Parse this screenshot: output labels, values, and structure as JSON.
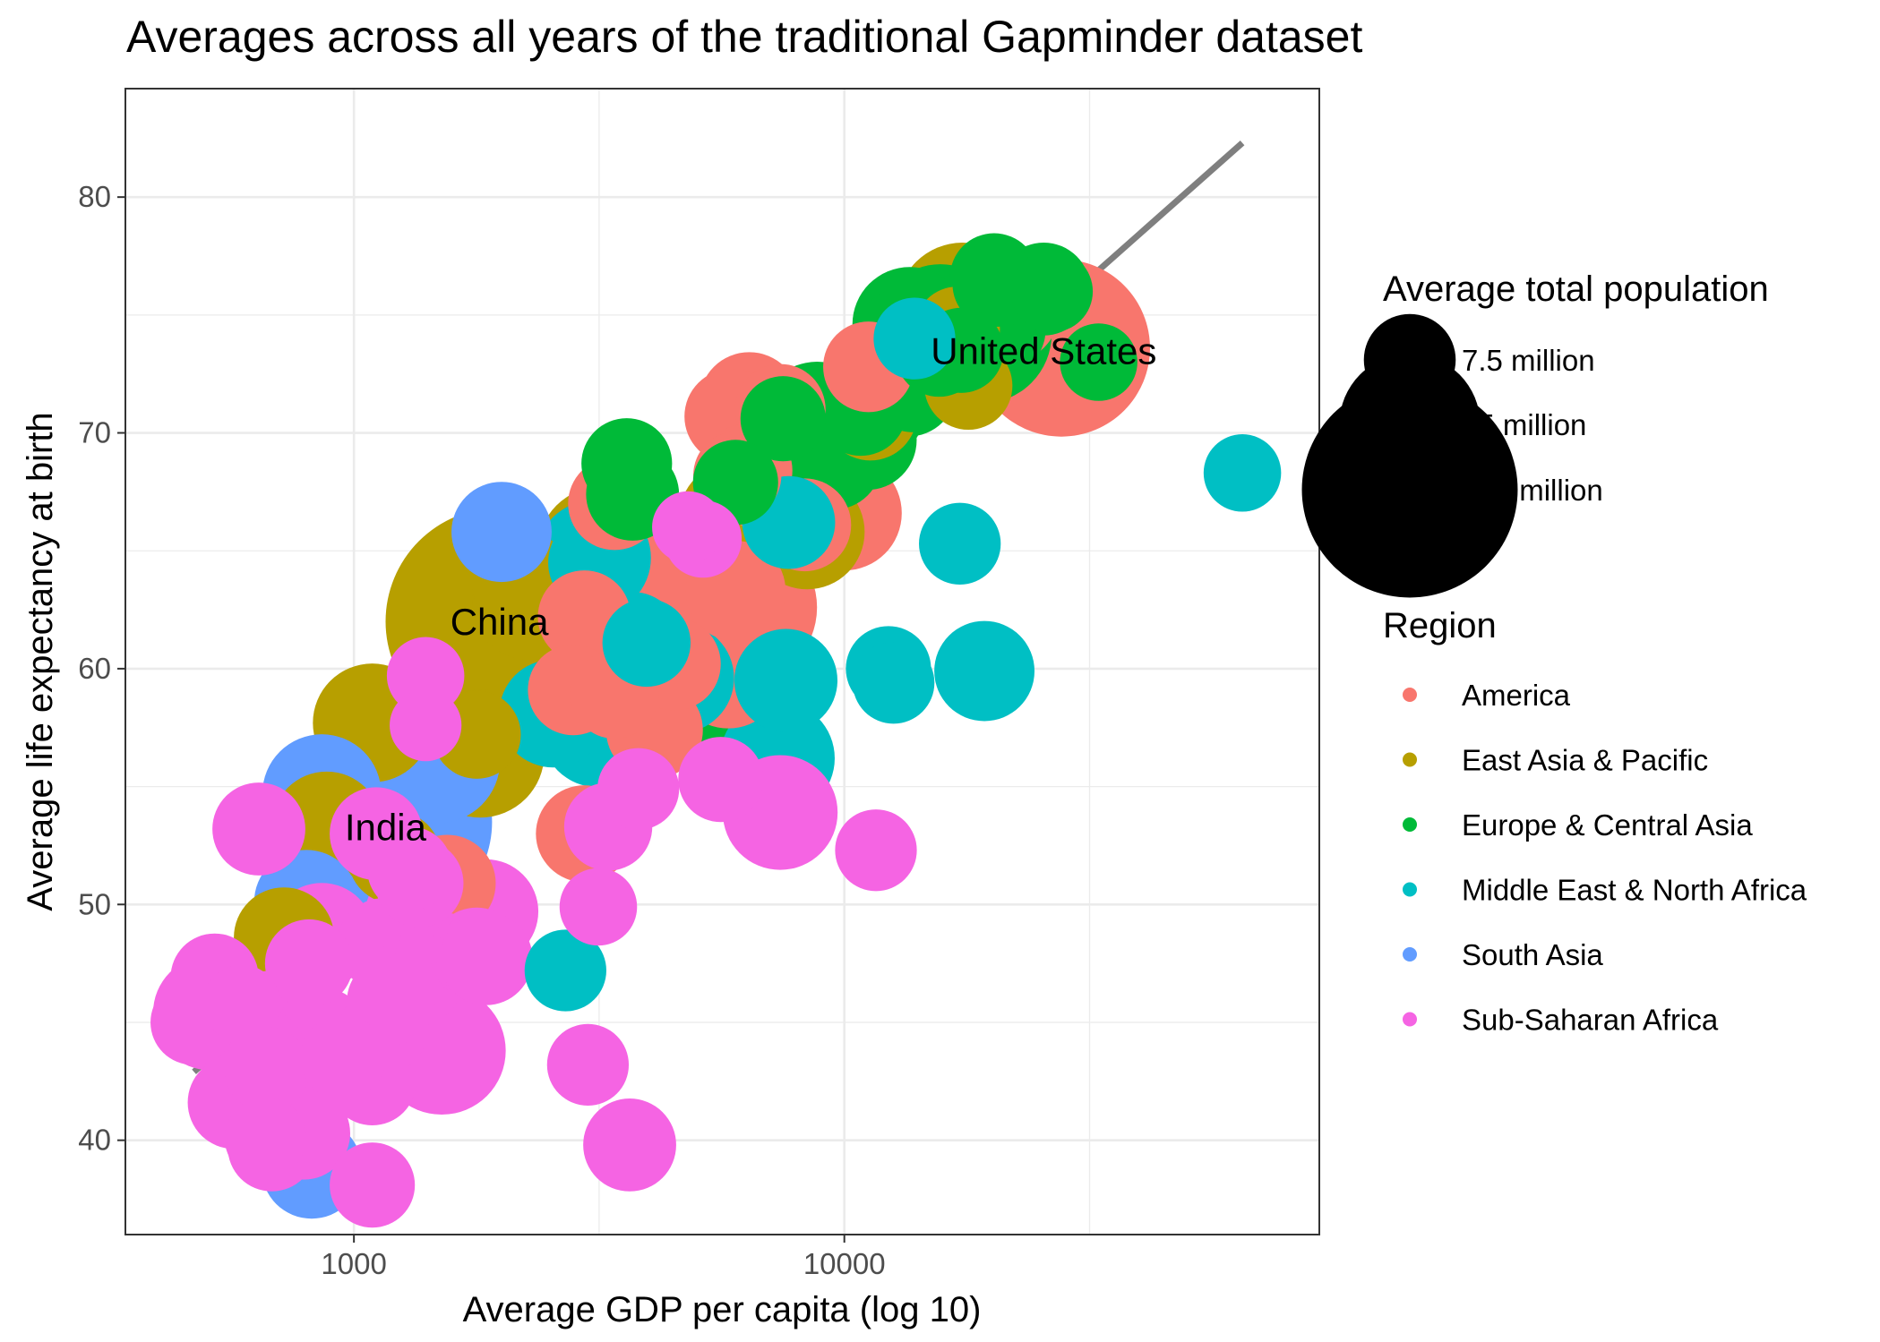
{
  "chart_data": {
    "type": "scatter",
    "title": "Averages across all years of the traditional Gapminder dataset",
    "xlabel": "Average GDP per capita (log 10)",
    "ylabel": "Average life expectancy at birth",
    "x_scale": "log10",
    "xlim": [
      342,
      93000
    ],
    "ylim": [
      36.0,
      84.6
    ],
    "x_ticks": [
      1000,
      10000
    ],
    "x_tick_labels": [
      "1000",
      "10000"
    ],
    "y_ticks": [
      40,
      50,
      60,
      70,
      80
    ],
    "y_tick_labels": [
      "40",
      "50",
      "60",
      "70",
      "80"
    ],
    "grid": true,
    "trend_line": {
      "x": [
        472,
        64800
      ],
      "y": [
        42.9,
        82.3
      ],
      "color": "#7f7f7f"
    },
    "annotations": [
      {
        "text": "China",
        "x": 1980,
        "y": 62.0
      },
      {
        "text": "India",
        "x": 1160,
        "y": 53.3
      },
      {
        "text": "United States",
        "x": 25500,
        "y": 73.5
      }
    ],
    "legends": {
      "size": {
        "title": "Average total population",
        "entries": [
          {
            "label": "7.5 million",
            "population": 7500000
          },
          {
            "label": "75 million",
            "population": 75000000
          },
          {
            "label": "750 million",
            "population": 750000000
          }
        ]
      },
      "color": {
        "title": "Region",
        "entries": [
          {
            "label": "America",
            "color": "#F8766D"
          },
          {
            "label": "East Asia & Pacific",
            "color": "#B79F00"
          },
          {
            "label": "Europe & Central Asia",
            "color": "#00BA38"
          },
          {
            "label": "Middle East & North Africa",
            "color": "#00BFC4"
          },
          {
            "label": "South Asia",
            "color": "#619CFF"
          },
          {
            "label": "Sub-Saharan Africa",
            "color": "#F564E3"
          }
        ]
      }
    },
    "series": [
      {
        "name": "America",
        "color": "#F8766D",
        "points": [
          [
            27700,
            73.6,
            260000000
          ],
          [
            21200,
            75.3,
            22000000
          ],
          [
            11200,
            72.8,
            7000000
          ],
          [
            6400,
            71.3,
            12000000
          ],
          [
            7400,
            71.0,
            7000000
          ],
          [
            5900,
            70.7,
            9000000
          ],
          [
            9200,
            69.4,
            30000000
          ],
          [
            6300,
            68.4,
            8000000
          ],
          [
            6050,
            68.2,
            6000000
          ],
          [
            6950,
            67.9,
            12000000
          ],
          [
            10000,
            66.6,
            25000000
          ],
          [
            3400,
            67.0,
            8000000
          ],
          [
            8300,
            66.1,
            8000000
          ],
          [
            6100,
            62.6,
            130000000
          ],
          [
            6000,
            63.3,
            12000000
          ],
          [
            4400,
            64.4,
            30000000
          ],
          [
            2950,
            62.2,
            8000000
          ],
          [
            4500,
            60.2,
            8000000
          ],
          [
            5800,
            59.8,
            20000000
          ],
          [
            2800,
            59.1,
            7000000
          ],
          [
            3400,
            58.9,
            6000000
          ],
          [
            4100,
            57.4,
            10000000
          ],
          [
            1550,
            50.9,
            10000000
          ],
          [
            2950,
            53.0,
            10000000
          ]
        ]
      },
      {
        "name": "East Asia & Pacific",
        "color": "#B79F00",
        "points": [
          [
            1980,
            62.0,
            1000000000
          ],
          [
            2280,
            62.8,
            25000000
          ],
          [
            2220,
            63.6,
            14000000
          ],
          [
            3200,
            65.0,
            45000000
          ],
          [
            8400,
            65.8,
            25000000
          ],
          [
            5900,
            66.5,
            15000000
          ],
          [
            11300,
            70.8,
            8000000
          ],
          [
            17400,
            75.3,
            50000000
          ],
          [
            20000,
            75.0,
            10000000
          ],
          [
            17900,
            72.0,
            6000000
          ],
          [
            17000,
            74.4,
            5000000
          ],
          [
            1780,
            57.2,
            6000000
          ],
          [
            1810,
            56.4,
            45000000
          ],
          [
            1090,
            57.7,
            30000000
          ],
          [
            880,
            53.3,
            20000000
          ],
          [
            1210,
            52.0,
            8000000
          ],
          [
            720,
            48.6,
            12000000
          ]
        ]
      },
      {
        "name": "Europe & Central Asia",
        "color": "#00BA38",
        "points": [
          [
            20200,
            76.6,
            6000000
          ],
          [
            20300,
            76.3,
            5000000
          ],
          [
            20400,
            75.9,
            12000000
          ],
          [
            25500,
            76.1,
            8000000
          ],
          [
            26500,
            76.0,
            4000000
          ],
          [
            13600,
            74.6,
            25000000
          ],
          [
            13200,
            74.1,
            10000000
          ],
          [
            15700,
            74.5,
            40000000
          ],
          [
            18300,
            74.6,
            40000000
          ],
          [
            19100,
            74.2,
            70000000
          ],
          [
            20500,
            74.4,
            10000000
          ],
          [
            17300,
            73.5,
            5000000
          ],
          [
            15600,
            73.4,
            6000000
          ],
          [
            13500,
            71.9,
            10000000
          ],
          [
            13800,
            72.0,
            8000000
          ],
          [
            33000,
            73.0,
            3000000
          ],
          [
            10800,
            71.0,
            8000000
          ],
          [
            11600,
            70.9,
            10000000
          ],
          [
            8800,
            70.5,
            30000000
          ],
          [
            9700,
            70.4,
            10000000
          ],
          [
            6700,
            70.4,
            10000000
          ],
          [
            7500,
            70.6,
            5000000
          ],
          [
            11100,
            69.7,
            12000000
          ],
          [
            7600,
            68.6,
            15000000
          ],
          [
            9500,
            68.8,
            10000000
          ],
          [
            3600,
            68.7,
            7000000
          ],
          [
            3700,
            67.4,
            8000000
          ],
          [
            6000,
            67.9,
            5000000
          ],
          [
            4900,
            58.5,
            25000000
          ]
        ]
      },
      {
        "name": "Middle East & North Africa",
        "color": "#00BFC4",
        "points": [
          [
            64800,
            68.3,
            3000000
          ],
          [
            17200,
            65.3,
            4000000
          ],
          [
            3080,
            64.7,
            25000000
          ],
          [
            3150,
            64.5,
            12000000
          ],
          [
            7700,
            66.2,
            8000000
          ],
          [
            3700,
            61.2,
            10000000
          ],
          [
            3950,
            61.1,
            6000000
          ],
          [
            4600,
            59.6,
            20000000
          ],
          [
            2550,
            58.1,
            18000000
          ],
          [
            3150,
            57.4,
            25000000
          ],
          [
            7600,
            59.5,
            14000000
          ],
          [
            12300,
            60.0,
            5000000
          ],
          [
            12600,
            59.4,
            4000000
          ],
          [
            19300,
            59.9,
            12000000
          ],
          [
            7300,
            56.2,
            25000000
          ],
          [
            1620,
            49.3,
            15000000
          ],
          [
            2700,
            47.2,
            4000000
          ],
          [
            13900,
            74.0,
            4000000
          ]
        ]
      },
      {
        "name": "South Asia",
        "color": "#619CFF",
        "points": [
          [
            1160,
            53.5,
            700000000
          ],
          [
            1480,
            56.1,
            40000000
          ],
          [
            860,
            54.7,
            30000000
          ],
          [
            2000,
            65.8,
            12000000
          ],
          [
            800,
            50.1,
            15000000
          ],
          [
            820,
            38.8,
            12000000
          ]
        ]
      },
      {
        "name": "Sub-Saharan Africa",
        "color": "#F564E3",
        "points": [
          [
            1400,
            59.7,
            3000000
          ],
          [
            1400,
            57.6,
            2000000
          ],
          [
            4800,
            66.0,
            2000000
          ],
          [
            5150,
            65.5,
            3000000
          ],
          [
            7400,
            53.9,
            25000000
          ],
          [
            3800,
            54.9,
            4000000
          ],
          [
            5600,
            55.3,
            5000000
          ],
          [
            3300,
            53.3,
            6000000
          ],
          [
            11600,
            52.3,
            4000000
          ],
          [
            3150,
            49.9,
            3000000
          ],
          [
            470,
            45.0,
            5000000
          ],
          [
            510,
            45.4,
            25000000
          ],
          [
            520,
            46.9,
            6000000
          ],
          [
            590,
            45.8,
            3000000
          ],
          [
            620,
            44.6,
            25000000
          ],
          [
            660,
            45.2,
            8000000
          ],
          [
            650,
            43.7,
            6000000
          ],
          [
            665,
            43.0,
            5000000
          ],
          [
            570,
            41.6,
            8000000
          ],
          [
            640,
            53.2,
            8000000
          ],
          [
            810,
            47.5,
            6000000
          ],
          [
            860,
            48.7,
            15000000
          ],
          [
            860,
            44.5,
            8000000
          ],
          [
            950,
            43.5,
            5000000
          ],
          [
            770,
            42.2,
            8000000
          ],
          [
            790,
            40.3,
            8000000
          ],
          [
            680,
            39.7,
            6000000
          ],
          [
            660,
            40.1,
            4000000
          ],
          [
            1090,
            38.1,
            5000000
          ],
          [
            1090,
            42.5,
            6000000
          ],
          [
            1150,
            44.7,
            6000000
          ],
          [
            1150,
            48.3,
            8000000
          ],
          [
            1190,
            45.9,
            6000000
          ],
          [
            1110,
            53.0,
            8000000
          ],
          [
            1300,
            51.5,
            5000000
          ],
          [
            1360,
            50.9,
            6000000
          ],
          [
            1330,
            49.5,
            12000000
          ],
          [
            1340,
            46.8,
            8000000
          ],
          [
            1510,
            47.7,
            8000000
          ],
          [
            1510,
            43.8,
            45000000
          ],
          [
            1780,
            47.9,
            8000000
          ],
          [
            1830,
            47.8,
            8000000
          ],
          [
            1860,
            47.7,
            8000000
          ],
          [
            1860,
            49.7,
            15000000
          ],
          [
            3000,
            43.2,
            4000000
          ],
          [
            3650,
            39.8,
            8000000
          ],
          [
            1310,
            51.5,
            4000000
          ]
        ]
      }
    ]
  }
}
